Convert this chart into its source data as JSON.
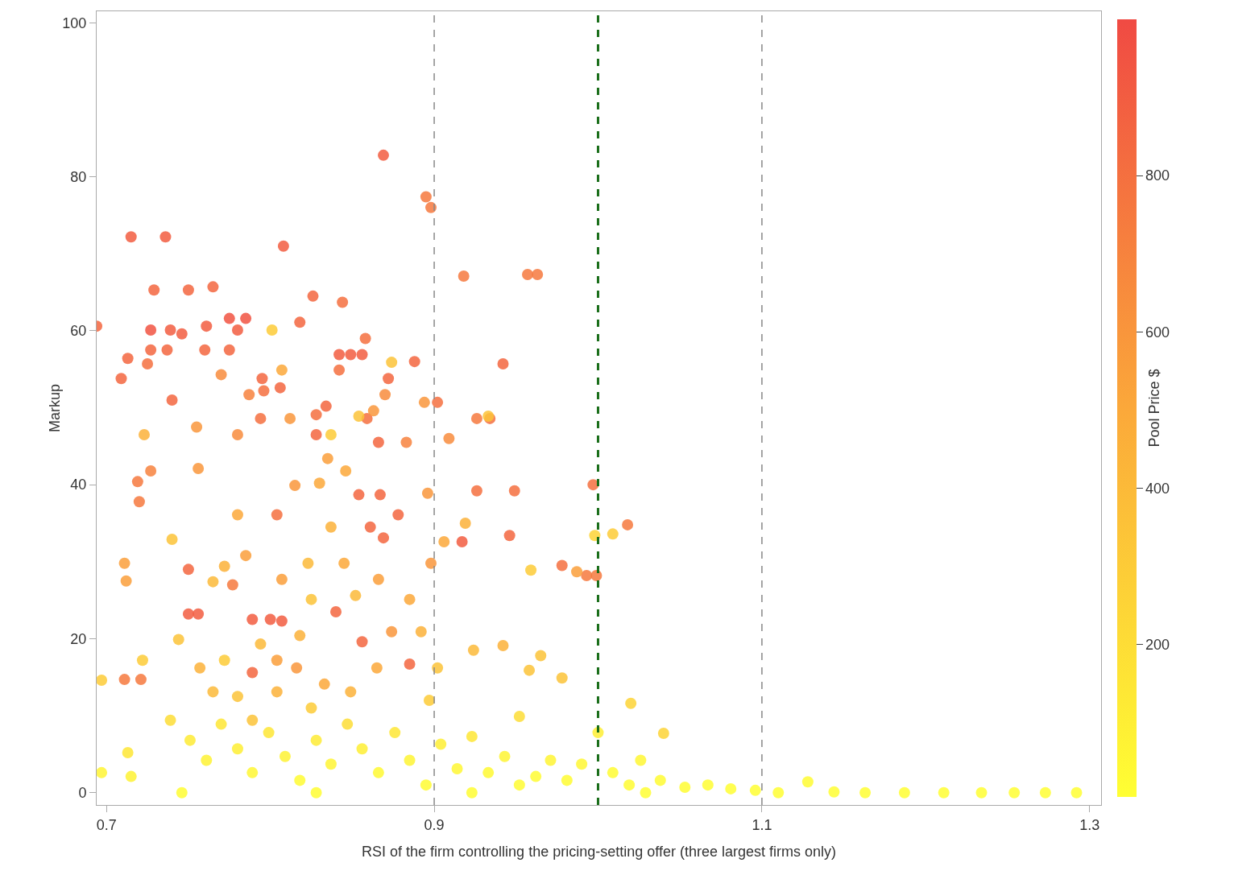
{
  "chart_data": {
    "type": "scatter",
    "xlabel": "RSI of the firm controlling the pricing-setting offer (three largest firms only)",
    "ylabel": "Markup",
    "clabel": "Pool Price $",
    "xlim": [
      0.694,
      1.307
    ],
    "xticks": [
      0.7,
      0.9,
      1.1,
      1.3
    ],
    "ylim": [
      -1.6,
      101.5
    ],
    "yticks": [
      0,
      20,
      40,
      60,
      80,
      100
    ],
    "clim": [
      5,
      1000
    ],
    "cticks": [
      200,
      400,
      600,
      800
    ],
    "grid": false,
    "marker": "circle",
    "ref_lines": [
      {
        "axis": "x",
        "value": 0.9,
        "color": "#888888",
        "line_style": "dashed"
      },
      {
        "axis": "x",
        "value": 1.1,
        "color": "#888888",
        "line_style": "dashed"
      },
      {
        "axis": "x",
        "value": 1.0,
        "color": "#1a6e1a",
        "line_style": "dashed"
      }
    ],
    "x": [
      0.869,
      0.715,
      0.736,
      0.808,
      0.694,
      0.729,
      0.75,
      0.765,
      0.727,
      0.739,
      0.746,
      0.761,
      0.775,
      0.785,
      0.78,
      0.727,
      0.737,
      0.76,
      0.775,
      0.713,
      0.725,
      0.74,
      0.709,
      0.795,
      0.796,
      0.806,
      0.818,
      0.826,
      0.844,
      0.842,
      0.849,
      0.856,
      0.858,
      0.842,
      0.834,
      0.828,
      0.872,
      0.888,
      0.902,
      0.895,
      0.898,
      0.918,
      0.957,
      0.963,
      0.942,
      0.926,
      0.934,
      0.926,
      0.949,
      0.997,
      0.946,
      0.917,
      0.978,
      0.993,
      0.999,
      1.018,
      0.719,
      0.72,
      0.727,
      0.75,
      0.756,
      0.75,
      0.777,
      0.789,
      0.8,
      0.807,
      0.789,
      0.711,
      0.721,
      0.856,
      0.885,
      0.854,
      0.867,
      0.878,
      0.861,
      0.869,
      0.84,
      0.828,
      0.866,
      0.804,
      0.859,
      0.794,
      0.787,
      0.711,
      0.712,
      0.723,
      0.74,
      0.755,
      0.756,
      0.765,
      0.772,
      0.744,
      0.757,
      0.78,
      0.785,
      0.78,
      0.77,
      0.801,
      0.807,
      0.812,
      0.815,
      0.83,
      0.837,
      0.835,
      0.846,
      0.854,
      0.863,
      0.87,
      0.874,
      0.883,
      0.894,
      0.896,
      0.898,
      0.906,
      0.909,
      0.919,
      0.933,
      0.959,
      0.965,
      0.998,
      1.009,
      0.987,
      0.942,
      0.924,
      0.958,
      0.978,
      1.02,
      1.04,
      0.837,
      0.823,
      0.845,
      0.807,
      0.825,
      0.852,
      0.866,
      0.885,
      0.874,
      0.818,
      0.794,
      0.804,
      0.816,
      0.833,
      0.849,
      0.865,
      0.892,
      0.902,
      0.897,
      0.772,
      0.78,
      0.765,
      0.804,
      0.789,
      0.825,
      0.722,
      0.697,
      0.713,
      0.715,
      0.739,
      0.751,
      0.761,
      0.77,
      0.78,
      0.789,
      0.799,
      0.809,
      0.818,
      0.828,
      0.837,
      0.847,
      0.856,
      0.866,
      0.876,
      0.885,
      0.895,
      0.904,
      0.914,
      0.923,
      0.933,
      0.943,
      0.952,
      0.962,
      0.971,
      0.981,
      0.99,
      1.0,
      1.009,
      1.019,
      1.026,
      1.038,
      1.053,
      1.067,
      1.081,
      1.096,
      1.11,
      1.128,
      1.144,
      1.163,
      1.187,
      1.211,
      1.234,
      1.254,
      1.273,
      1.292,
      0.746,
      0.828,
      0.923,
      0.697,
      0.952,
      1.029
    ],
    "values": [
      82.8,
      72.2,
      72.2,
      71.0,
      60.6,
      65.3,
      65.3,
      65.7,
      60.1,
      60.1,
      59.6,
      60.6,
      61.6,
      61.6,
      60.1,
      57.5,
      57.5,
      57.5,
      57.5,
      56.4,
      55.7,
      51.0,
      53.8,
      53.8,
      52.2,
      52.6,
      61.1,
      64.5,
      63.7,
      56.9,
      56.9,
      56.9,
      59.0,
      54.9,
      50.2,
      49.1,
      53.8,
      56.0,
      50.7,
      77.4,
      76.0,
      67.1,
      67.3,
      67.3,
      55.7,
      48.6,
      48.6,
      39.2,
      39.2,
      40.0,
      33.4,
      32.6,
      29.5,
      28.2,
      28.2,
      34.8,
      40.4,
      37.8,
      41.8,
      23.2,
      23.2,
      29.0,
      27.0,
      22.5,
      22.5,
      22.3,
      15.6,
      14.7,
      14.7,
      19.6,
      16.7,
      38.7,
      38.7,
      36.1,
      34.5,
      33.1,
      23.5,
      46.5,
      45.5,
      36.1,
      48.6,
      48.6,
      51.7,
      29.8,
      27.5,
      46.5,
      32.9,
      47.5,
      42.1,
      27.4,
      29.4,
      19.9,
      16.2,
      36.1,
      30.8,
      46.5,
      54.3,
      60.1,
      54.9,
      48.6,
      39.9,
      40.2,
      46.5,
      43.4,
      41.8,
      48.9,
      49.6,
      51.7,
      55.9,
      45.5,
      50.7,
      38.9,
      29.8,
      32.6,
      46.0,
      35.0,
      48.9,
      28.9,
      17.8,
      33.4,
      33.6,
      28.7,
      19.1,
      18.5,
      15.9,
      14.9,
      11.6,
      7.7,
      34.5,
      29.8,
      29.8,
      27.7,
      25.1,
      25.6,
      27.7,
      25.1,
      20.9,
      20.4,
      19.3,
      17.2,
      16.2,
      14.1,
      13.1,
      16.2,
      20.9,
      16.2,
      12.0,
      17.2,
      12.5,
      13.1,
      13.1,
      9.4,
      11.0,
      17.2,
      14.6,
      5.2,
      2.1,
      9.4,
      6.8,
      4.2,
      8.9,
      5.7,
      2.6,
      7.8,
      4.7,
      1.6,
      6.8,
      3.7,
      8.9,
      5.7,
      2.6,
      7.8,
      4.2,
      1.0,
      6.3,
      3.1,
      7.3,
      2.6,
      4.7,
      9.9,
      2.1,
      4.2,
      1.6,
      3.7,
      7.8,
      2.6,
      1.0,
      4.2,
      1.6,
      0.7,
      1.0,
      0.5,
      0.3,
      0,
      1.4,
      0.1,
      0,
      0,
      0,
      0,
      0,
      0,
      0,
      0,
      0,
      0,
      2.6,
      1.0,
      0
    ],
    "cvalues": [
      900,
      900,
      900,
      900,
      850,
      850,
      850,
      850,
      950,
      900,
      900,
      900,
      950,
      950,
      900,
      850,
      850,
      850,
      850,
      850,
      800,
      850,
      850,
      850,
      800,
      850,
      850,
      850,
      800,
      900,
      900,
      900,
      800,
      800,
      850,
      800,
      850,
      850,
      800,
      750,
      750,
      750,
      750,
      750,
      850,
      750,
      800,
      800,
      800,
      800,
      850,
      900,
      800,
      750,
      750,
      750,
      750,
      750,
      700,
      900,
      900,
      850,
      750,
      900,
      900,
      900,
      850,
      750,
      750,
      850,
      850,
      850,
      850,
      850,
      850,
      850,
      850,
      850,
      850,
      800,
      800,
      800,
      700,
      550,
      550,
      450,
      350,
      600,
      600,
      400,
      450,
      350,
      450,
      500,
      550,
      650,
      650,
      300,
      500,
      600,
      600,
      500,
      300,
      550,
      500,
      350,
      600,
      650,
      350,
      700,
      600,
      600,
      600,
      500,
      650,
      450,
      350,
      300,
      350,
      250,
      300,
      550,
      450,
      400,
      350,
      350,
      250,
      250,
      450,
      400,
      500,
      550,
      350,
      400,
      550,
      500,
      600,
      450,
      400,
      550,
      600,
      500,
      450,
      500,
      450,
      350,
      300,
      300,
      350,
      400,
      450,
      350,
      300,
      300,
      300,
      150,
      80,
      200,
      120,
      80,
      150,
      100,
      50,
      150,
      80,
      30,
      120,
      60,
      200,
      100,
      40,
      150,
      70,
      20,
      100,
      50,
      150,
      40,
      70,
      200,
      30,
      60,
      25,
      50,
      100,
      30,
      20,
      50,
      20,
      15,
      15,
      10,
      10,
      10,
      30,
      10,
      10,
      10,
      10,
      10,
      10,
      10,
      10,
      15,
      15,
      15,
      60,
      20,
      10
    ]
  }
}
